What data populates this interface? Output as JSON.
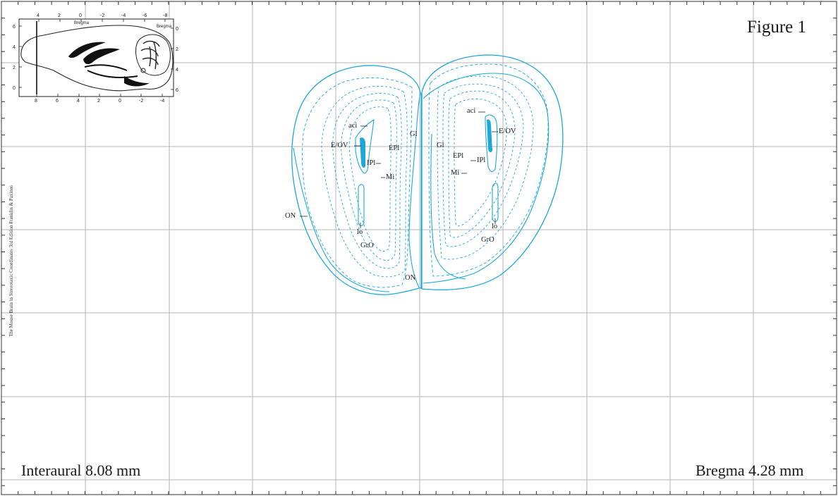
{
  "figure_title": "Figure 1",
  "interaural": "Interaural 8.08 mm",
  "bregma": "Bregma 4.28 mm",
  "credit": "The Mouse Brain in Stereotaxic Coordinates 3rd Edition  Franklin & Paxinos",
  "inset": {
    "top_label": "Bregma",
    "right_label": "Bregma",
    "top_ticks": [
      "4",
      "2",
      "0",
      "-2",
      "-4",
      "-6",
      "-8"
    ],
    "bottom_ticks": [
      "8",
      "6",
      "4",
      "2",
      "0",
      "-2",
      "-4"
    ],
    "left_ticks": [
      "6",
      "4",
      "2",
      "0"
    ],
    "right_ticks": [
      "0",
      "2",
      "4",
      "6"
    ]
  },
  "labels": {
    "on_left": "ON",
    "on_mid": "ON",
    "left": {
      "aci": "aci",
      "eov": "E/OV",
      "ipl": "IPl",
      "epl": "EPl",
      "mi": "Mi",
      "gl": "Gl",
      "lo": "lo",
      "gro": "GrO"
    },
    "right": {
      "aci": "aci",
      "eov": "E/OV",
      "ipl": "IPl",
      "epl": "EPl",
      "mi": "Mi",
      "gl": "Gl",
      "lo": "lo",
      "gro": "GrO"
    }
  },
  "colors": {
    "outline": "#1da8dc",
    "fill": "#1da8dc",
    "grid": "#b4b4b4",
    "frame": "#333333"
  }
}
